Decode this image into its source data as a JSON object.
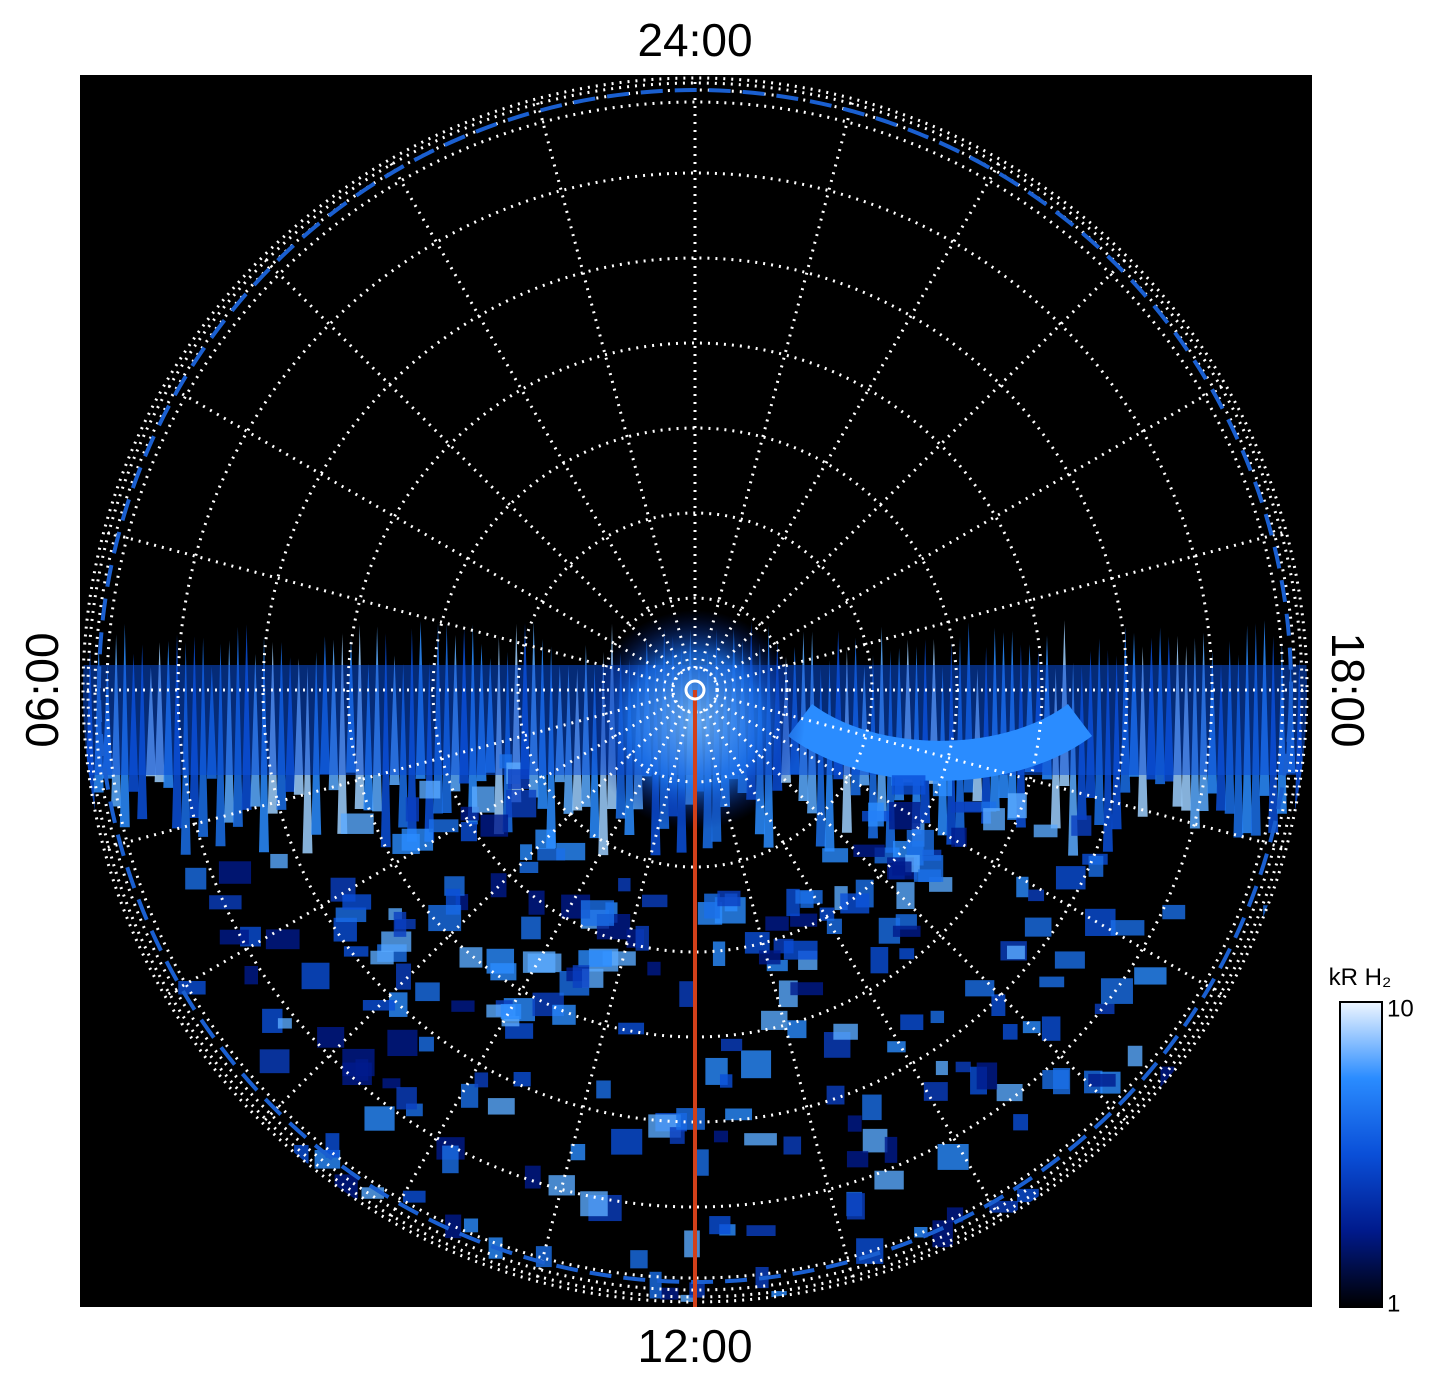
{
  "labels": {
    "top": "24:00",
    "bottom": "12:00",
    "left": "06:00",
    "right": "18:00"
  },
  "colorbar": {
    "title": "kR H₂",
    "scale": "log",
    "lim": [
      1,
      10
    ],
    "ticks": [
      1,
      10
    ],
    "colors": [
      "#000000",
      "#001a8c",
      "#0a4fd8",
      "#2a8cff",
      "#eef6ff"
    ]
  }
}
